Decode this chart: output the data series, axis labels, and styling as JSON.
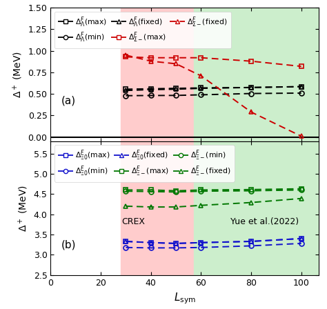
{
  "x_vals": [
    30,
    40,
    50,
    60,
    80,
    100
  ],
  "panel_a": {
    "lambda_max": [
      0.555,
      0.56,
      0.565,
      0.57,
      0.575,
      0.585
    ],
    "lambda_min": [
      0.48,
      0.482,
      0.483,
      0.49,
      0.505,
      0.51
    ],
    "lambda_fixed": [
      0.54,
      0.55,
      0.555,
      0.565,
      0.575,
      0.585
    ],
    "sigma_max": [
      0.93,
      0.92,
      0.92,
      0.92,
      0.88,
      0.82
    ],
    "sigma_fixed": [
      0.95,
      0.88,
      0.85,
      0.71,
      0.29,
      0.01
    ]
  },
  "panel_b": {
    "xi0_max": [
      3.33,
      3.3,
      3.28,
      3.3,
      3.33,
      3.4
    ],
    "xi0_min": [
      3.18,
      3.17,
      3.17,
      3.18,
      3.22,
      3.28
    ],
    "xi0_fixed": [
      3.33,
      3.3,
      3.28,
      3.3,
      3.33,
      3.4
    ],
    "xim_max": [
      4.6,
      4.6,
      4.58,
      4.6,
      4.61,
      4.63
    ],
    "xim_min": [
      4.57,
      4.56,
      4.55,
      4.57,
      4.58,
      4.6
    ],
    "xim_fixed": [
      4.2,
      4.18,
      4.18,
      4.22,
      4.29,
      4.39
    ]
  },
  "crex_xmin": 28,
  "crex_xmax": 57,
  "yue_xmin": 57,
  "yue_xmax": 107,
  "xlim": [
    0,
    107
  ],
  "panel_a_ylim": [
    -0.05,
    1.5
  ],
  "panel_a_yticks": [
    0.0,
    0.25,
    0.5,
    0.75,
    1.0,
    1.25,
    1.5
  ],
  "panel_b_ylim": [
    2.5,
    5.8
  ],
  "panel_b_yticks": [
    2.5,
    3.0,
    3.5,
    4.0,
    4.5,
    5.0,
    5.5
  ],
  "xlabel": "$L_{\\rm sym}$",
  "ylabel_a": "$\\Delta^+$ (MeV)",
  "ylabel_b": "$\\Delta^+$ (MeV)",
  "color_black": "#000000",
  "color_red": "#cc0000",
  "color_blue": "#1111cc",
  "color_green": "#007700",
  "crex_color": "#ffcccc",
  "yue_color": "#cceecc"
}
